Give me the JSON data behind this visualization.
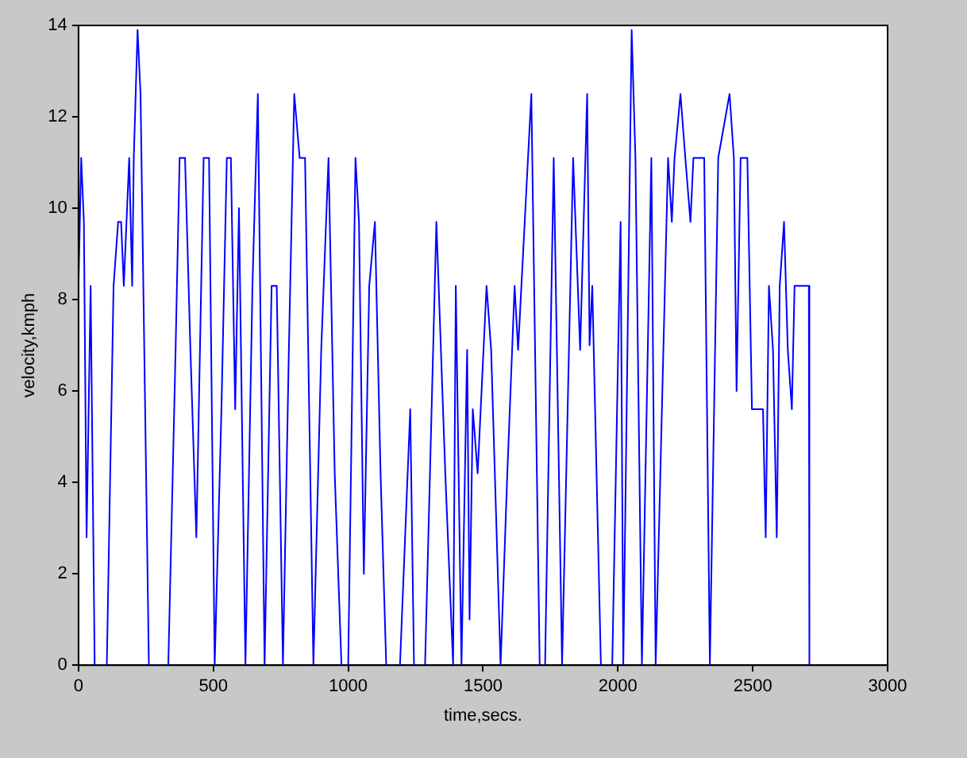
{
  "chart_data": {
    "type": "line",
    "xlabel": "time,secs.",
    "ylabel": "velocity,kmph",
    "xlim": [
      0,
      3000
    ],
    "xticks": [
      0,
      500,
      1000,
      1500,
      2000,
      2500,
      3000
    ],
    "ylim": [
      0,
      14
    ],
    "yticks": [
      0,
      2,
      4,
      6,
      8,
      10,
      12,
      14
    ],
    "grid": false,
    "legend": false,
    "marker": "none",
    "line_style": "solid",
    "series": [
      {
        "color": "#0000ff",
        "x": [
          0,
          10,
          20,
          30,
          45,
          60,
          75,
          105,
          130,
          147,
          158,
          168,
          188,
          199,
          205,
          219,
          230,
          261,
          333,
          360,
          375,
          395,
          415,
          437,
          464,
          484,
          505,
          530,
          550,
          565,
          581,
          595,
          619,
          645,
          665,
          690,
          716,
          735,
          758,
          780,
          800,
          820,
          840,
          871,
          900,
          927,
          950,
          975,
          1000,
          1027,
          1040,
          1058,
          1078,
          1099,
          1120,
          1141,
          1192,
          1230,
          1244,
          1285,
          1327,
          1360,
          1389,
          1399,
          1420,
          1441,
          1450,
          1462,
          1480,
          1513,
          1530,
          1565,
          1590,
          1617,
          1630,
          1679,
          1710,
          1730,
          1762,
          1793,
          1834,
          1860,
          1886,
          1895,
          1905,
          1937,
          1979,
          2010,
          2020,
          2051,
          2065,
          2089,
          2124,
          2140,
          2186,
          2200,
          2210,
          2232,
          2250,
          2269,
          2280,
          2320,
          2341,
          2372,
          2414,
          2430,
          2440,
          2455,
          2480,
          2497,
          2538,
          2548,
          2560,
          2575,
          2589,
          2600,
          2616,
          2630,
          2645,
          2655,
          2708,
          2710
        ],
        "values": [
          8.3,
          11.1,
          9.7,
          2.8,
          8.3,
          0,
          0,
          0,
          8.3,
          9.7,
          9.7,
          8.3,
          11.1,
          8.3,
          11.1,
          13.9,
          12.5,
          0,
          0,
          6.9,
          11.1,
          11.1,
          6.9,
          2.8,
          11.1,
          11.1,
          0,
          5.6,
          11.1,
          11.1,
          5.6,
          10,
          0,
          8.3,
          12.5,
          0,
          8.3,
          8.3,
          0,
          6.9,
          12.5,
          11.1,
          11.1,
          0,
          6.9,
          11.1,
          4.2,
          0,
          0,
          11.1,
          9.7,
          2,
          8.3,
          9.7,
          4.2,
          0,
          0,
          5.6,
          0,
          0,
          9.7,
          4.2,
          0,
          8.3,
          0,
          6.9,
          1,
          5.6,
          4.2,
          8.3,
          6.9,
          0,
          4.2,
          8.3,
          6.9,
          12.5,
          0,
          0,
          11.1,
          0,
          11.1,
          6.9,
          12.5,
          7,
          8.3,
          0,
          0,
          9.7,
          0,
          13.9,
          11.1,
          0,
          11.1,
          0,
          11.1,
          9.7,
          11.1,
          12.5,
          11.1,
          9.7,
          11.1,
          11.1,
          0,
          11.1,
          12.5,
          11.1,
          6,
          11.1,
          11.1,
          5.6,
          5.6,
          2.8,
          8.3,
          6.9,
          2.8,
          8.3,
          9.7,
          6.9,
          5.6,
          8.3,
          8.3,
          0
        ]
      }
    ]
  }
}
